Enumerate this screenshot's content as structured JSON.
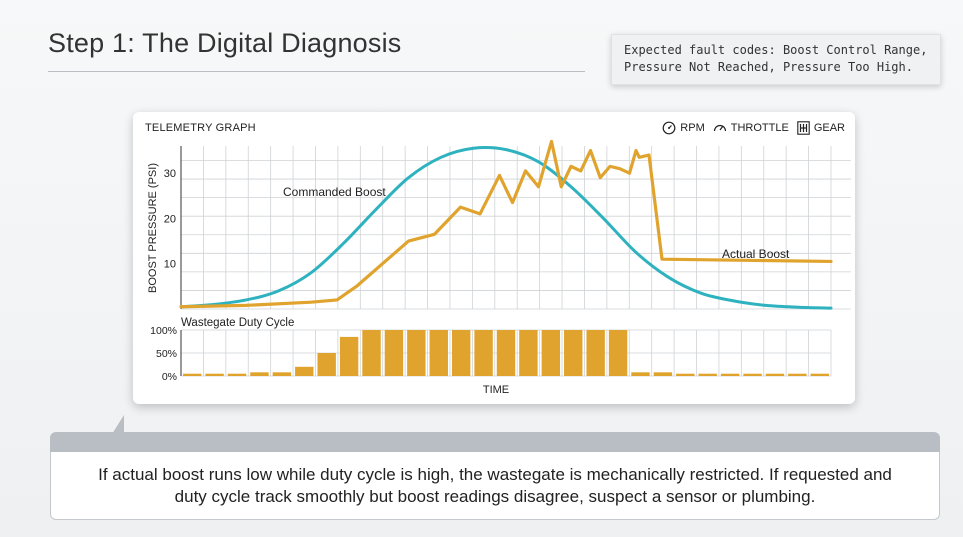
{
  "page": {
    "title": "Step 1: The Digital Diagnosis",
    "fault_note": "Expected fault codes: Boost Control Range,\nPressure Not Reached, Pressure Too High.",
    "callout": "If actual boost runs low while duty cycle is high, the wastegate is mechanically restricted. If requested and duty cycle track smoothly but boost readings disagree, suspect a sensor or plumbing."
  },
  "panel": {
    "label": "TELEMETRY GRAPH",
    "legend": [
      {
        "icon": "rpm-gauge-icon",
        "label": "RPM"
      },
      {
        "icon": "throttle-gauge-icon",
        "label": "THROTTLE"
      },
      {
        "icon": "gear-shift-icon",
        "label": "GEAR"
      }
    ]
  },
  "colors": {
    "commanded": "#2fb2bf",
    "actual": "#e0a42e",
    "bars": "#e0a42e",
    "grid": "#cfd2d5"
  },
  "chart_data": [
    {
      "type": "line",
      "ylabel": "BOOST PRESSURE (PSI)",
      "xlabel": "TIME",
      "yticks": [
        10,
        20,
        30
      ],
      "ylim": [
        0,
        36
      ],
      "xlim": [
        0,
        100
      ],
      "grid": true,
      "series": [
        {
          "name": "Commanded Boost",
          "x": [
            0,
            5,
            10,
            15,
            20,
            25,
            30,
            35,
            40,
            45,
            50,
            55,
            60,
            65,
            70,
            75,
            80,
            85,
            90,
            95,
            100
          ],
          "values": [
            0.5,
            1.0,
            2.0,
            4.0,
            8.0,
            14.5,
            22.0,
            29.0,
            33.5,
            35.5,
            35.2,
            32.5,
            27.0,
            20.0,
            12.5,
            7.0,
            3.5,
            1.8,
            0.8,
            0.4,
            0.2
          ]
        },
        {
          "name": "Actual Boost",
          "x": [
            0,
            10,
            20,
            24,
            27,
            31,
            35,
            39,
            43,
            46,
            49,
            51,
            53,
            55,
            57,
            58.5,
            60,
            61.5,
            63,
            64.5,
            66,
            67.5,
            69,
            70,
            70.5,
            72,
            74,
            100
          ],
          "values": [
            0.5,
            0.8,
            1.5,
            2.0,
            5.0,
            10.0,
            15.0,
            16.5,
            22.5,
            21.0,
            29.5,
            23.5,
            30.5,
            27.0,
            37.0,
            27.0,
            31.5,
            30.5,
            35.0,
            29.0,
            31.5,
            31.0,
            30.0,
            35.0,
            33.5,
            34.0,
            11.0,
            10.5
          ]
        }
      ]
    },
    {
      "type": "bar",
      "title": "Wastegate Duty Cycle",
      "xlabel": "TIME",
      "yticks": [
        "0%",
        "50%",
        "100%"
      ],
      "ylim": [
        0,
        100
      ],
      "values": [
        5,
        5,
        5,
        8,
        8,
        20,
        50,
        85,
        100,
        100,
        100,
        100,
        100,
        100,
        100,
        100,
        100,
        100,
        100,
        100,
        8,
        8,
        5,
        5,
        5,
        5,
        5,
        5,
        5
      ]
    }
  ]
}
